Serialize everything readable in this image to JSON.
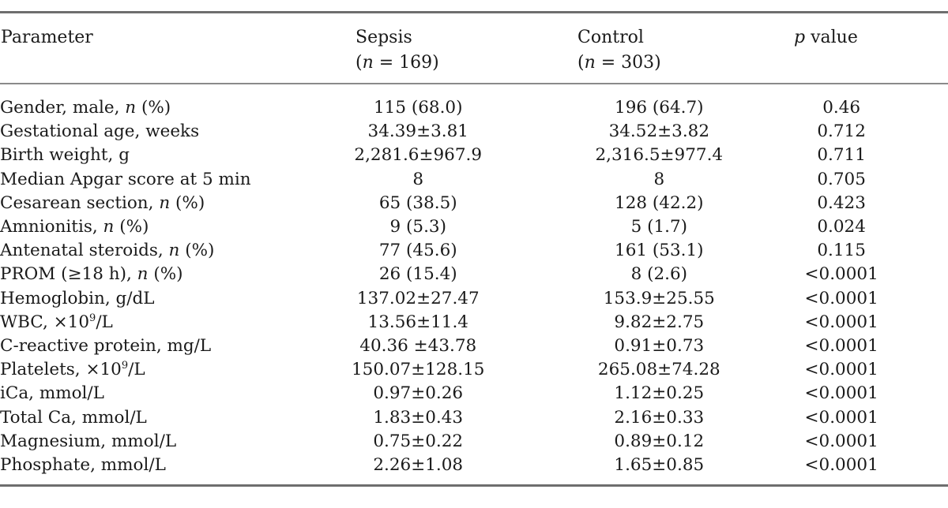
{
  "header": {
    "parameter": "Parameter",
    "sepsis": "Sepsis",
    "sepsis_n_prefix": "(",
    "sepsis_n_italic": "n",
    "sepsis_n_rest": " = 169)",
    "control": "Control",
    "control_n_prefix": "(",
    "control_n_italic": "n",
    "control_n_rest": " = 303)",
    "p_italic": "p",
    "p_rest": " value"
  },
  "rows": [
    {
      "param": "Gender, male, ",
      "param_italic": "n",
      "param_tail": " (%)",
      "sepsis": "115 (68.0)",
      "control": "196 (64.7)",
      "p": "0.46"
    },
    {
      "param": "Gestational age, weeks",
      "sepsis": "34.39±3.81",
      "control": "34.52±3.82",
      "p": "0.712"
    },
    {
      "param": "Birth weight, g",
      "sepsis": "2,281.6±967.9",
      "control": "2,316.5±977.4",
      "p": "0.711"
    },
    {
      "param": "Median Apgar score at 5 min",
      "sepsis": "8",
      "control": "8",
      "p": "0.705"
    },
    {
      "param": "Cesarean section, ",
      "param_italic": "n",
      "param_tail": " (%)",
      "sepsis": "65 (38.5)",
      "control": "128 (42.2)",
      "p": "0.423"
    },
    {
      "param": "Amnionitis, ",
      "param_italic": "n",
      "param_tail": " (%)",
      "sepsis": "9 (5.3)",
      "control": "5 (1.7)",
      "p": "0.024"
    },
    {
      "param": "Antenatal steroids, ",
      "param_italic": "n",
      "param_tail": " (%)",
      "sepsis": "77 (45.6)",
      "control": "161 (53.1)",
      "p": "0.115"
    },
    {
      "param": "PROM (≥18 h), ",
      "param_italic": "n",
      "param_tail": " (%)",
      "sepsis": "26 (15.4)",
      "control": "8 (2.6)",
      "p": "<0.0001"
    },
    {
      "param": "Hemoglobin, g/dL",
      "sepsis": "137.02±27.47",
      "control": "153.9±25.55",
      "p": "<0.0001"
    },
    {
      "param": "WBC, ×10",
      "param_sup": "9",
      "param_tail": "/L",
      "sepsis": "13.56±11.4",
      "control": "9.82±2.75",
      "p": "<0.0001"
    },
    {
      "param": "C-reactive protein, mg/L",
      "sepsis": "40.36 ±43.78",
      "control": "0.91±0.73",
      "p": "<0.0001"
    },
    {
      "param": "Platelets, ×10",
      "param_sup": "9",
      "param_tail": "/L",
      "sepsis": "150.07±128.15",
      "control": "265.08±74.28",
      "p": "<0.0001"
    },
    {
      "param": "iCa, mmol/L",
      "sepsis": "0.97±0.26",
      "control": "1.12±0.25",
      "p": "<0.0001"
    },
    {
      "param": "Total Ca, mmol/L",
      "sepsis": "1.83±0.43",
      "control": "2.16±0.33",
      "p": "<0.0001"
    },
    {
      "param": "Magnesium, mmol/L",
      "sepsis": "0.75±0.22",
      "control": "0.89±0.12",
      "p": "<0.0001"
    },
    {
      "param": "Phosphate, mmol/L",
      "sepsis": "2.26±1.08",
      "control": "1.65±0.85",
      "p": "<0.0001"
    }
  ]
}
